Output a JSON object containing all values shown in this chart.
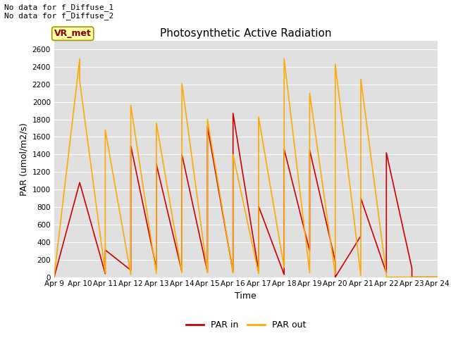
{
  "title": "Photosynthetic Active Radiation",
  "xlabel": "Time",
  "ylabel": "PAR (umol/m2/s)",
  "annotation_text": "No data for f_Diffuse_1\nNo data for f_Diffuse_2",
  "legend_label_text": "VR_met",
  "legend_entries": [
    "PAR in",
    "PAR out"
  ],
  "par_in_color": "#cc0000",
  "par_out_color": "#ffaa00",
  "background_color": "#e0e0e0",
  "ylim": [
    0,
    2700
  ],
  "yticks": [
    0,
    200,
    400,
    600,
    800,
    1000,
    1200,
    1400,
    1600,
    1800,
    2000,
    2200,
    2400,
    2600
  ],
  "xtick_labels": [
    "Apr 9",
    "Apr 10",
    "Apr 11",
    "Apr 12",
    "Apr 13",
    "Apr 14",
    "Apr 15",
    "Apr 16",
    "Apr 17",
    "Apr 18",
    "Apr 19",
    "Apr 20",
    "Apr 21",
    "Apr 22",
    "Apr 23",
    "Apr 24"
  ],
  "par_in_x": [
    0,
    1,
    2,
    2,
    3,
    3,
    4,
    4,
    5,
    5,
    6,
    6,
    7,
    7,
    8,
    8,
    9,
    9,
    10,
    10,
    11,
    11,
    12,
    12,
    13,
    13,
    14,
    14,
    15
  ],
  "par_in_y": [
    0,
    1080,
    40,
    310,
    80,
    1500,
    100,
    1290,
    60,
    1400,
    60,
    1720,
    60,
    1870,
    70,
    810,
    30,
    1460,
    300,
    1450,
    180,
    0,
    470,
    900,
    50,
    1420,
    100,
    0,
    0
  ],
  "par_out_x": [
    0,
    1,
    1,
    2,
    2,
    3,
    3,
    4,
    4,
    5,
    5,
    6,
    6,
    7,
    7,
    8,
    8,
    9,
    9,
    10,
    10,
    11,
    11,
    12,
    12,
    13,
    13,
    14,
    14,
    15
  ],
  "par_out_y": [
    0,
    2490,
    2240,
    50,
    1680,
    30,
    1960,
    40,
    1760,
    50,
    2210,
    50,
    1800,
    50,
    1400,
    40,
    1830,
    110,
    2490,
    50,
    2100,
    30,
    2430,
    20,
    2260,
    30,
    0,
    0,
    0,
    0
  ],
  "figsize": [
    6.4,
    4.8
  ],
  "dpi": 100,
  "title_fontsize": 11,
  "axis_fontsize": 9,
  "tick_fontsize": 7.5,
  "legend_fontsize": 9
}
